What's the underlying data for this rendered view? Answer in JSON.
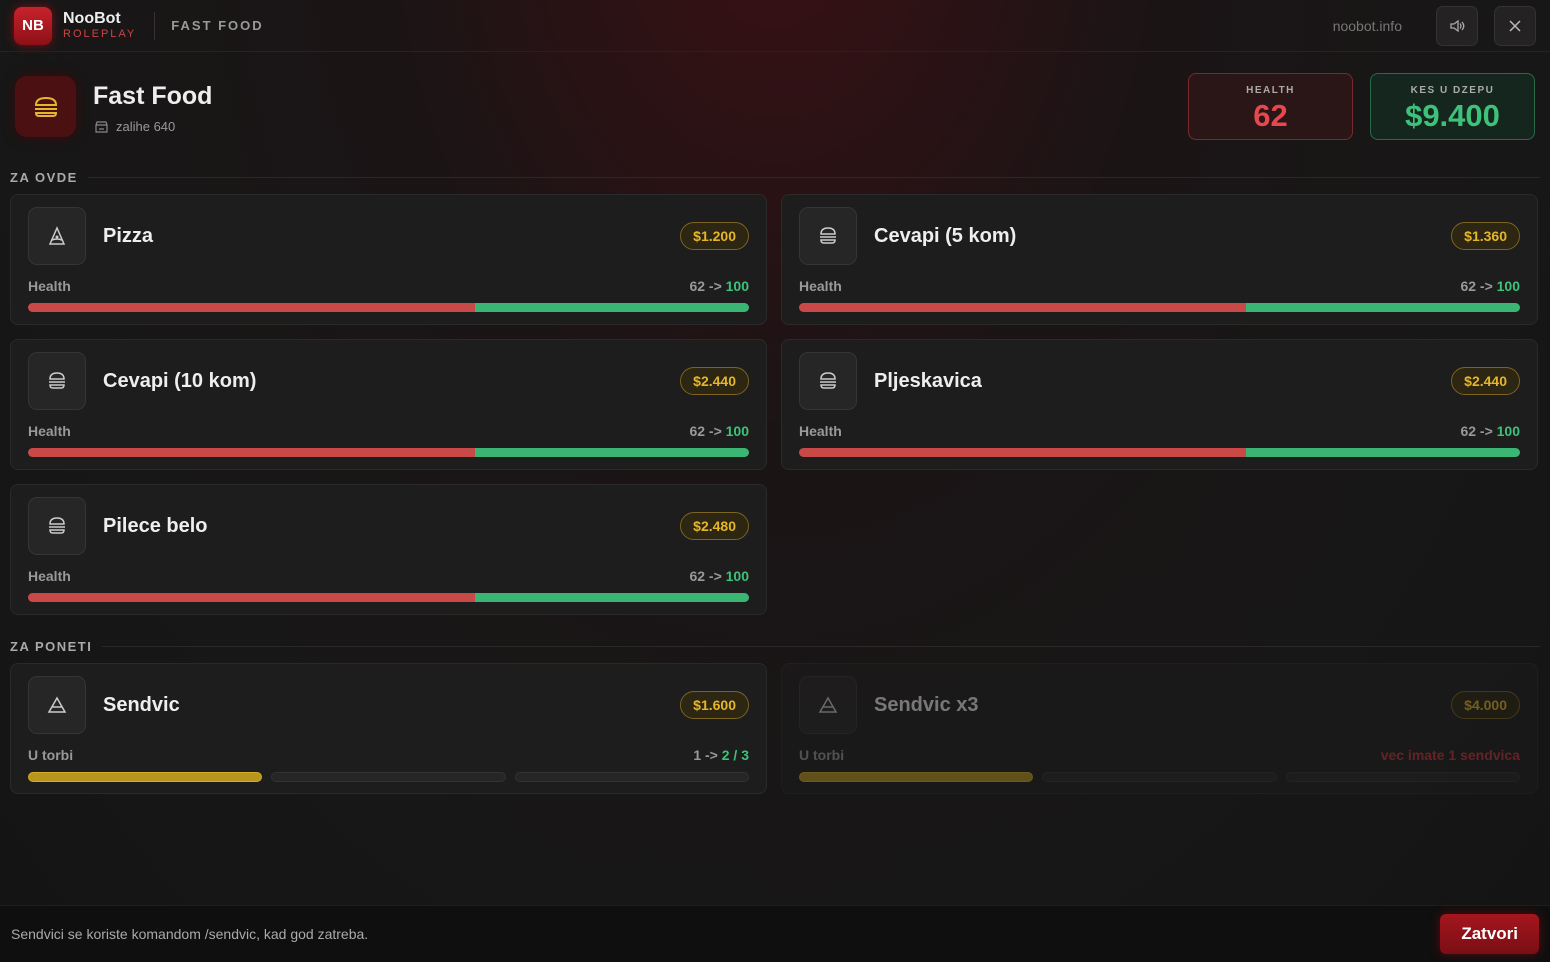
{
  "header": {
    "logo": "NB",
    "brand": "NooBot",
    "sub": "ROLEPLAY",
    "section": "FAST FOOD",
    "site": "noobot.info"
  },
  "shop": {
    "title": "Fast Food",
    "stock": "zalihe 640"
  },
  "stats": [
    {
      "label": "HEALTH",
      "value": "62",
      "tone": "red"
    },
    {
      "label": "KES U DZEPU",
      "value": "$9.400",
      "tone": "green"
    }
  ],
  "groups": [
    {
      "title": "ZA OVDE",
      "items": [
        {
          "name": "Pizza",
          "icon": "pizza",
          "price": "$1.200",
          "stat": "Health",
          "from": 62,
          "arrow": "->",
          "to": 100
        },
        {
          "name": "Cevapi (5 kom)",
          "icon": "burger",
          "price": "$1.360",
          "stat": "Health",
          "from": 62,
          "arrow": "->",
          "to": 100
        },
        {
          "name": "Cevapi (10 kom)",
          "icon": "burger",
          "price": "$2.440",
          "stat": "Health",
          "from": 62,
          "arrow": "->",
          "to": 100
        },
        {
          "name": "Pljeskavica",
          "icon": "burger",
          "price": "$2.440",
          "stat": "Health",
          "from": 62,
          "arrow": "->",
          "to": 100
        },
        {
          "name": "Pilece belo",
          "icon": "burger",
          "price": "$2.480",
          "stat": "Health",
          "from": 62,
          "arrow": "->",
          "to": 100
        }
      ]
    },
    {
      "title": "ZA PONETI",
      "items": [
        {
          "name": "Sendvic",
          "icon": "sandwich",
          "price": "$1.600",
          "stat": "U torbi",
          "from": 1,
          "arrow": "->",
          "to": 2,
          "sep": "/",
          "max": 3
        },
        {
          "name": "Sendvic x3",
          "icon": "sandwich",
          "price": "$4.000",
          "stat": "U torbi",
          "note": "vec imate 1 sendvica",
          "from": 1,
          "max": 3,
          "disabled": true
        }
      ]
    }
  ],
  "footer": {
    "hint": "Sendvici se koriste komandom /sendvic, kad god zatreba.",
    "button": "Zatvori"
  }
}
